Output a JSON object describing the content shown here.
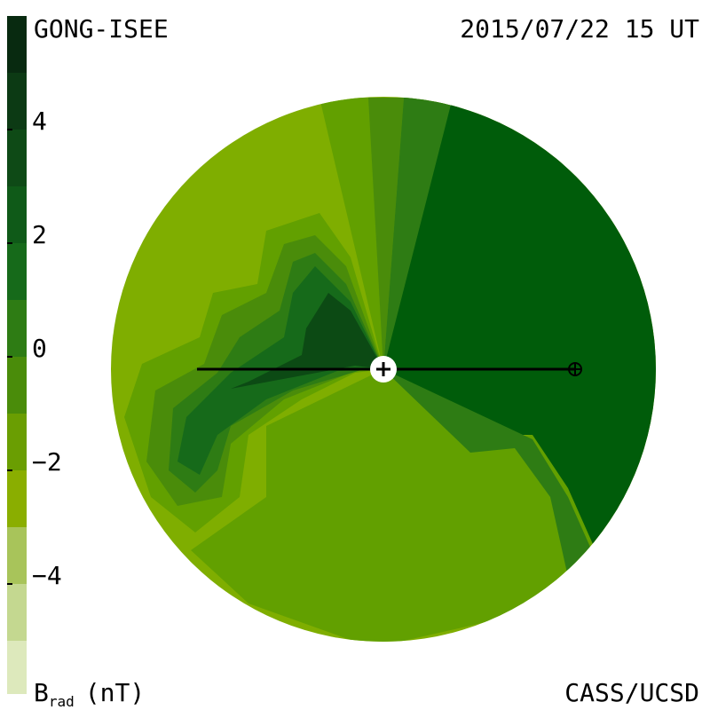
{
  "header": {
    "left": "GONG-ISEE",
    "right": "2015/07/22 15 UT"
  },
  "colorbar": {
    "ticks": [
      "4",
      "2",
      "0",
      "−2",
      "−4"
    ],
    "label": "B",
    "label_sub": "rad",
    "unit": "(nT)"
  },
  "footer": {
    "right": "CASS/UCSD"
  }
}
